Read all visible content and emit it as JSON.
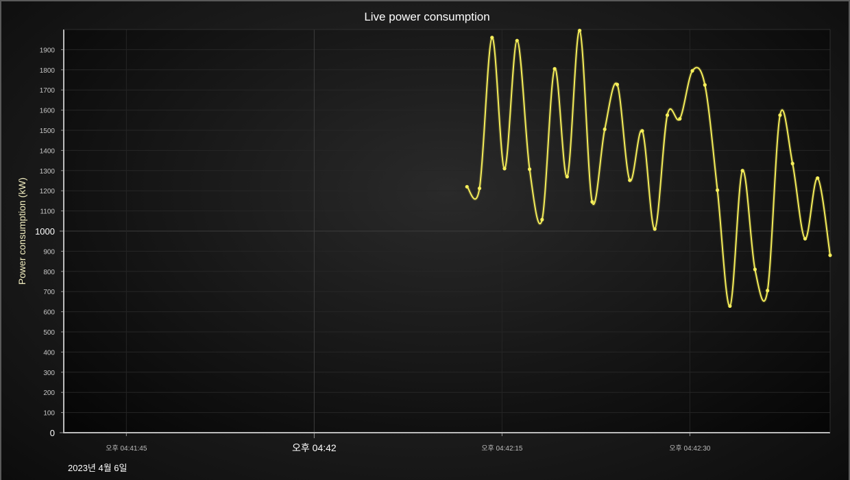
{
  "chart_data": {
    "type": "line",
    "title": "Live power consumption",
    "ylabel": "Power consumption (kW)",
    "xlabel": "",
    "date_label": "2023년 4월 6일",
    "ylim": [
      0,
      2000
    ],
    "y_ticks": [
      0,
      100,
      200,
      300,
      400,
      500,
      600,
      700,
      800,
      900,
      1000,
      1100,
      1200,
      1300,
      1400,
      1500,
      1600,
      1700,
      1800,
      1900
    ],
    "y_major_ticks": [
      0,
      1000
    ],
    "x_ticks": [
      {
        "t": -15,
        "label": "오후 04:41:45",
        "major": false
      },
      {
        "t": 0,
        "label": "오후 04:42",
        "major": true
      },
      {
        "t": 15,
        "label": "오후 04:42:15",
        "major": false
      },
      {
        "t": 30,
        "label": "오후 04:42:30",
        "major": false
      }
    ],
    "xlim": [
      -20,
      41.2
    ],
    "grid": true,
    "line_color": "#f5ee5a",
    "series": [
      {
        "name": "",
        "points": [
          [
            12.2,
            1220
          ],
          [
            13.2,
            1212
          ],
          [
            14.2,
            1960
          ],
          [
            15.2,
            1310
          ],
          [
            16.2,
            1945
          ],
          [
            17.2,
            1307
          ],
          [
            18.2,
            1057
          ],
          [
            19.2,
            1805
          ],
          [
            20.2,
            1270
          ],
          [
            21.2,
            1995
          ],
          [
            22.2,
            1145
          ],
          [
            23.2,
            1505
          ],
          [
            24.2,
            1727
          ],
          [
            25.2,
            1252
          ],
          [
            26.2,
            1497
          ],
          [
            27.2,
            1010
          ],
          [
            28.2,
            1575
          ],
          [
            29.2,
            1557
          ],
          [
            30.2,
            1795
          ],
          [
            31.2,
            1725
          ],
          [
            32.2,
            1203
          ],
          [
            33.2,
            628
          ],
          [
            34.2,
            1300
          ],
          [
            35.2,
            810
          ],
          [
            36.2,
            705
          ],
          [
            37.2,
            1575
          ],
          [
            38.2,
            1335
          ],
          [
            39.2,
            962
          ],
          [
            40.2,
            1263
          ],
          [
            41.2,
            880
          ]
        ]
      }
    ]
  }
}
